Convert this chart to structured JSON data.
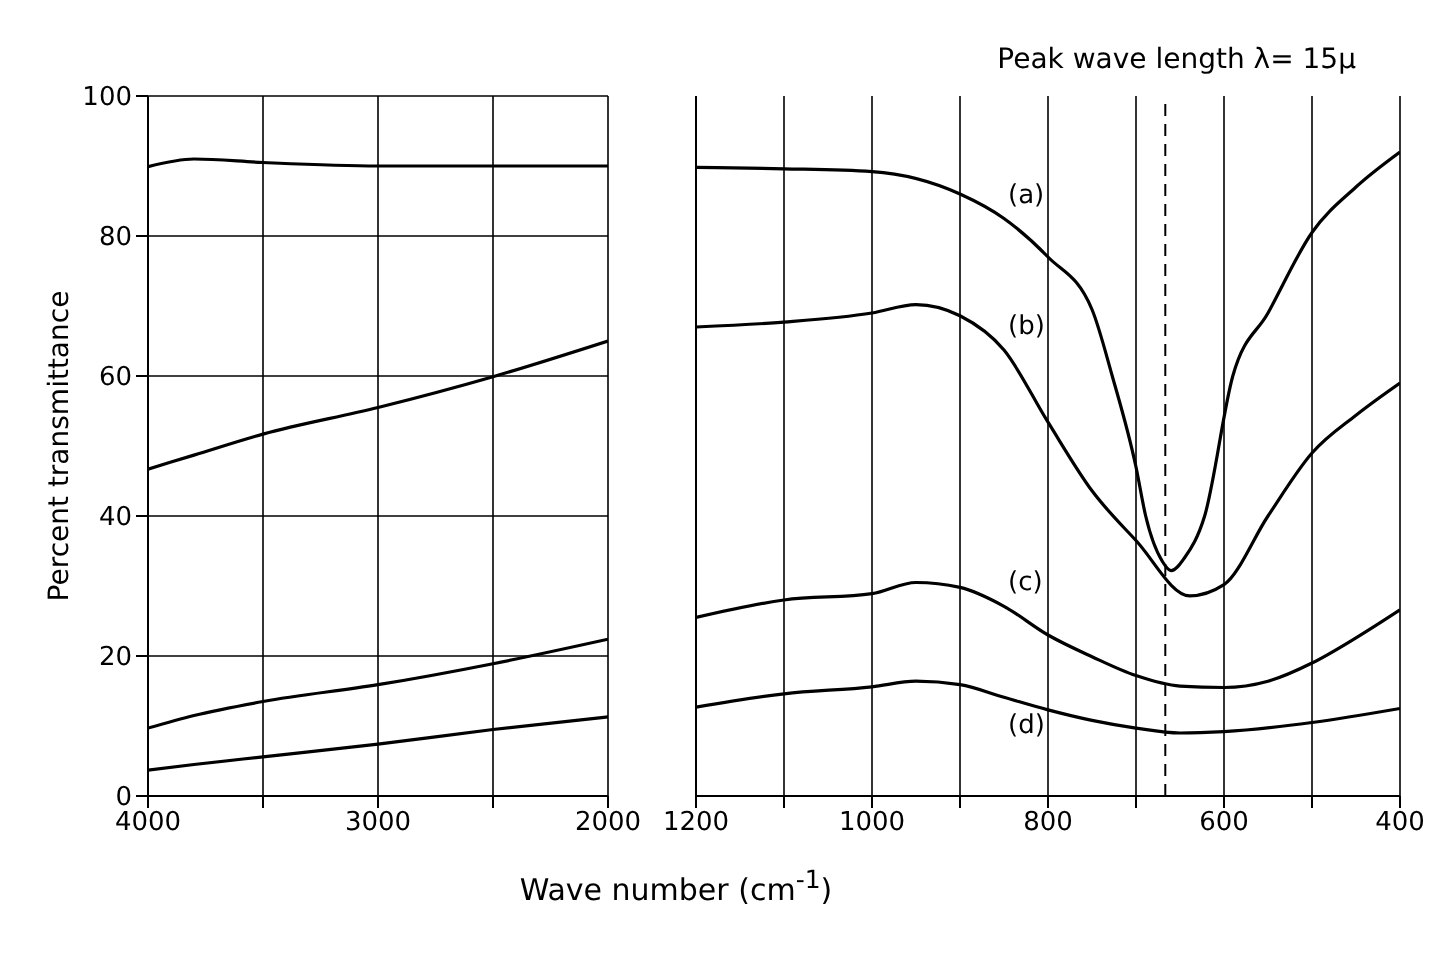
{
  "chart_data": [
    {
      "type": "line",
      "ylabel": "Percent transmittance",
      "x": [
        4000,
        3800,
        3500,
        3000,
        2500,
        2000
      ],
      "xlim": [
        4000,
        2000
      ],
      "xticks": [
        4000,
        {
          "value": 3500,
          "label": null
        },
        3000,
        {
          "value": 2500,
          "label": null
        },
        2000
      ],
      "ylim": [
        0,
        100
      ],
      "yticks": [
        0,
        20,
        40,
        60,
        80,
        100
      ],
      "grid": true,
      "marker": "none",
      "line_style": "solid",
      "series": [
        {
          "color": "#000000",
          "values": [
            89.9,
            91,
            90.5,
            90,
            90,
            90
          ]
        },
        {
          "color": "#000000",
          "values": [
            46.7,
            48.7,
            51.7,
            55.5,
            59.9,
            65
          ]
        },
        {
          "color": "#000000",
          "values": [
            9.7,
            11.5,
            13.5,
            15.9,
            18.9,
            22.4
          ]
        },
        {
          "color": "#000000",
          "values": [
            3.7,
            4.5,
            5.6,
            7.4,
            9.5,
            11.3
          ]
        }
      ]
    },
    {
      "type": "line",
      "xlabel": "Wave number (cm$^{-1}$)",
      "xlim": [
        1200,
        400
      ],
      "xticks": [
        1200,
        {
          "value": 1100,
          "label": null
        },
        1000,
        {
          "value": 900,
          "label": null
        },
        800,
        {
          "value": 700,
          "label": null
        },
        600,
        {
          "value": 500,
          "label": null
        },
        400
      ],
      "ylim": [
        0,
        100
      ],
      "yticks": [
        0,
        20,
        40,
        60,
        80,
        100
      ],
      "tick_labels": "x",
      "grid": true,
      "marker": "none",
      "line_style": "solid",
      "annotations": [
        "Peak wave length λ= 15μ"
      ],
      "ref_lines": [
        {
          "axis": "x",
          "value": 666.7,
          "color": "#000000",
          "line_style": "dashed"
        }
      ],
      "series": [
        {
          "name": "(a)",
          "color": "#000000",
          "x": [
            1200,
            1100,
            1000,
            900,
            850,
            800,
            750,
            727,
            700,
            689,
            670,
            660,
            645,
            622,
            590,
            550,
            500,
            450,
            400
          ],
          "values": [
            89.8,
            89.6,
            89.2,
            86,
            82.5,
            77,
            69.5,
            60,
            47,
            40,
            33.5,
            32.2,
            34,
            40,
            60,
            69,
            80.5,
            87,
            92
          ]
        },
        {
          "name": "(b)",
          "color": "#000000",
          "x": [
            1200,
            1100,
            1000,
            950,
            900,
            850,
            800,
            750,
            700,
            639,
            600,
            550,
            500,
            450,
            400
          ],
          "values": [
            67,
            67.7,
            69,
            70.2,
            68.6,
            63.7,
            53.4,
            43.6,
            36.5,
            28.6,
            30.2,
            40,
            49,
            54.4,
            59
          ]
        },
        {
          "name": "(c)",
          "color": "#000000",
          "x": [
            1200,
            1100,
            1000,
            950,
            900,
            850,
            800,
            750,
            700,
            650,
            600,
            550,
            500,
            450,
            400
          ],
          "values": [
            25.5,
            28,
            28.9,
            30.5,
            29.8,
            27.1,
            23,
            19.9,
            17.2,
            15.7,
            15.5,
            16.4,
            19,
            22.6,
            26.6
          ]
        },
        {
          "name": "(d)",
          "color": "#000000",
          "x": [
            1200,
            1100,
            1000,
            950,
            900,
            850,
            800,
            750,
            700,
            650,
            600,
            500,
            400
          ],
          "values": [
            12.7,
            14.6,
            15.6,
            16.4,
            15.9,
            14.1,
            12.3,
            10.8,
            9.7,
            9,
            9.2,
            10.5,
            12.5
          ]
        }
      ]
    }
  ]
}
